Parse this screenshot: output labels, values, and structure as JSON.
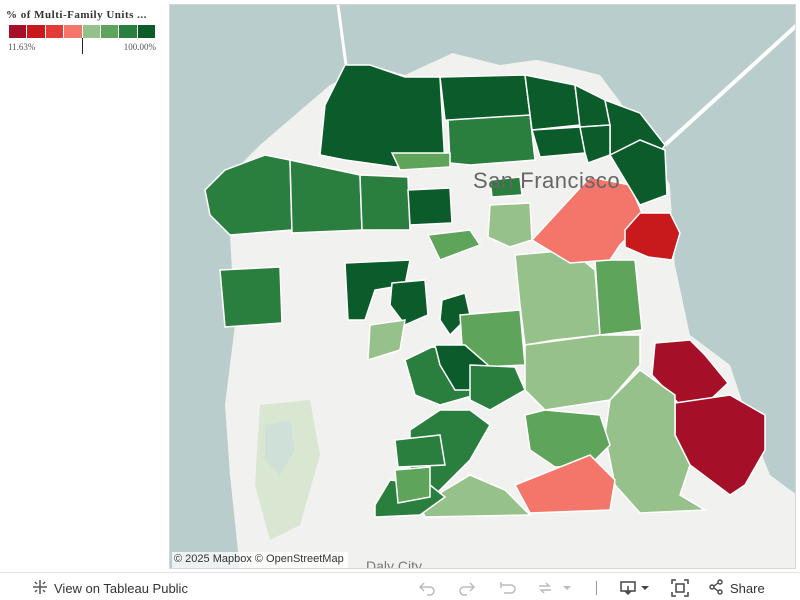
{
  "legend": {
    "title": "% of Multi-Family Units ...",
    "min_label": "11.63%",
    "max_label": "100.00%",
    "colors": [
      "#a50f28",
      "#c8191c",
      "#e33b38",
      "#f4766b",
      "#97c18a",
      "#5ea45a",
      "#2a7f3f",
      "#0c5c2b"
    ]
  },
  "map": {
    "city_label": "San Francisco",
    "attribution": "© 2025 Mapbox  © OpenStreetMap",
    "bottom_city_label": "Daly City",
    "colors": {
      "water": "#b9cdcd",
      "land": "#f1f1ef",
      "park": "#d9e7d2",
      "dark_green": "#0c5c2b",
      "green": "#2a7f3f",
      "mid_green": "#5ea45a",
      "light_green": "#97c18a",
      "salmon": "#f4766b",
      "red": "#c8191c",
      "dark_red": "#a50f28"
    }
  },
  "toolbar": {
    "view_on_public_label": "View on Tableau Public",
    "share_label": "Share"
  }
}
